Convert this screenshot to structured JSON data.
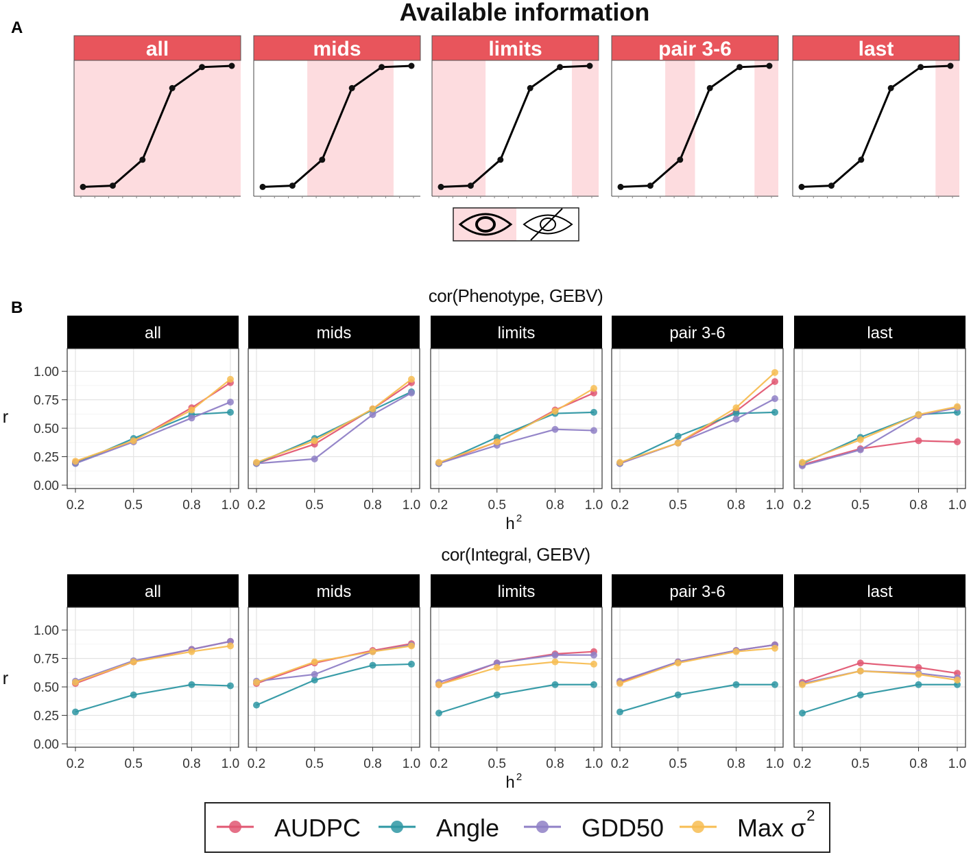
{
  "panel_a": {
    "label": "A",
    "title": "Available information",
    "facets": [
      "all",
      "mids",
      "limits",
      "pair 3-6",
      "last"
    ],
    "curve": {
      "x": [
        1,
        2,
        3,
        4,
        5,
        6
      ],
      "y": [
        0.02,
        0.03,
        0.24,
        0.82,
        0.99,
        1.0
      ]
    },
    "visible_ranges": [
      [
        [
          0.7,
          6.3
        ]
      ],
      [
        [
          2.5,
          5.4
        ]
      ],
      [
        [
          0.7,
          2.5
        ],
        [
          5.4,
          6.3
        ]
      ],
      [
        [
          2.5,
          3.5
        ],
        [
          5.5,
          6.3
        ]
      ],
      [
        [
          5.5,
          6.3
        ]
      ]
    ],
    "legend_icons": [
      "eye-icon",
      "eye-slash-icon"
    ],
    "colors": {
      "strip": "#e8555c",
      "shade": "#fddcdf"
    }
  },
  "panel_b": {
    "label": "B",
    "h2_label": "h",
    "h2_sup": "2",
    "legend": [
      {
        "name": "AUDPC",
        "color": "#e15772"
      },
      {
        "name": "Angle",
        "color": "#2e97a3"
      },
      {
        "name": "GDD50",
        "color": "#8f80c6"
      },
      {
        "name": "Max σ",
        "sup": "2",
        "color": "#f7bd52"
      }
    ]
  },
  "chart_data": [
    {
      "type": "line",
      "title": "cor(Phenotype, GEBV)",
      "xlabel": "h2",
      "ylabel": "r",
      "x": [
        0.2,
        0.5,
        0.8,
        1.0
      ],
      "xticks": [
        "0.2",
        "0.5",
        "0.8",
        "1.0"
      ],
      "ylim": [
        -0.03,
        1.2
      ],
      "yticks": [
        "0.00",
        "0.25",
        "0.50",
        "0.75",
        "1.00"
      ],
      "facets": [
        {
          "name": "all",
          "series": [
            {
              "name": "AUDPC",
              "values": [
                0.2,
                0.39,
                0.68,
                0.9
              ]
            },
            {
              "name": "Angle",
              "values": [
                0.19,
                0.41,
                0.62,
                0.64
              ]
            },
            {
              "name": "GDD50",
              "values": [
                0.19,
                0.38,
                0.59,
                0.73
              ]
            },
            {
              "name": "Max σ2",
              "values": [
                0.21,
                0.39,
                0.66,
                0.93
              ]
            }
          ]
        },
        {
          "name": "mids",
          "series": [
            {
              "name": "AUDPC",
              "values": [
                0.19,
                0.36,
                0.67,
                0.9
              ]
            },
            {
              "name": "Angle",
              "values": [
                0.19,
                0.41,
                0.66,
                0.82
              ]
            },
            {
              "name": "GDD50",
              "values": [
                0.19,
                0.23,
                0.62,
                0.81
              ]
            },
            {
              "name": "Max σ2",
              "values": [
                0.2,
                0.39,
                0.67,
                0.93
              ]
            }
          ]
        },
        {
          "name": "limits",
          "series": [
            {
              "name": "AUDPC",
              "values": [
                0.19,
                0.38,
                0.66,
                0.81
              ]
            },
            {
              "name": "Angle",
              "values": [
                0.19,
                0.42,
                0.63,
                0.64
              ]
            },
            {
              "name": "GDD50",
              "values": [
                0.19,
                0.35,
                0.49,
                0.48
              ]
            },
            {
              "name": "Max σ2",
              "values": [
                0.2,
                0.38,
                0.65,
                0.85
              ]
            }
          ]
        },
        {
          "name": "pair 3-6",
          "series": [
            {
              "name": "AUDPC",
              "values": [
                0.19,
                0.37,
                0.65,
                0.91
              ]
            },
            {
              "name": "Angle",
              "values": [
                0.19,
                0.43,
                0.63,
                0.64
              ]
            },
            {
              "name": "GDD50",
              "values": [
                0.19,
                0.37,
                0.58,
                0.76
              ]
            },
            {
              "name": "Max σ2",
              "values": [
                0.2,
                0.37,
                0.68,
                0.99
              ]
            }
          ]
        },
        {
          "name": "last",
          "series": [
            {
              "name": "AUDPC",
              "values": [
                0.18,
                0.32,
                0.39,
                0.38
              ]
            },
            {
              "name": "Angle",
              "values": [
                0.19,
                0.42,
                0.62,
                0.64
              ]
            },
            {
              "name": "GDD50",
              "values": [
                0.17,
                0.31,
                0.61,
                0.68
              ]
            },
            {
              "name": "Max σ2",
              "values": [
                0.2,
                0.4,
                0.62,
                0.69
              ]
            }
          ]
        }
      ]
    },
    {
      "type": "line",
      "title": "cor(Integral, GEBV)",
      "xlabel": "h2",
      "ylabel": "r",
      "x": [
        0.2,
        0.5,
        0.8,
        1.0
      ],
      "xticks": [
        "0.2",
        "0.5",
        "0.8",
        "1.0"
      ],
      "ylim": [
        -0.03,
        1.2
      ],
      "yticks": [
        "0.00",
        "0.25",
        "0.50",
        "0.75",
        "1.00"
      ],
      "facets": [
        {
          "name": "all",
          "series": [
            {
              "name": "AUDPC",
              "values": [
                0.53,
                0.72,
                0.83,
                0.9
              ]
            },
            {
              "name": "Angle",
              "values": [
                0.28,
                0.43,
                0.52,
                0.51
              ]
            },
            {
              "name": "GDD50",
              "values": [
                0.55,
                0.73,
                0.83,
                0.9
              ]
            },
            {
              "name": "Max σ2",
              "values": [
                0.54,
                0.72,
                0.81,
                0.86
              ]
            }
          ]
        },
        {
          "name": "mids",
          "series": [
            {
              "name": "AUDPC",
              "values": [
                0.53,
                0.71,
                0.82,
                0.88
              ]
            },
            {
              "name": "Angle",
              "values": [
                0.34,
                0.56,
                0.69,
                0.7
              ]
            },
            {
              "name": "GDD50",
              "values": [
                0.55,
                0.61,
                0.81,
                0.87
              ]
            },
            {
              "name": "Max σ2",
              "values": [
                0.54,
                0.72,
                0.81,
                0.86
              ]
            }
          ]
        },
        {
          "name": "limits",
          "series": [
            {
              "name": "AUDPC",
              "values": [
                0.52,
                0.71,
                0.79,
                0.81
              ]
            },
            {
              "name": "Angle",
              "values": [
                0.27,
                0.43,
                0.52,
                0.52
              ]
            },
            {
              "name": "GDD50",
              "values": [
                0.54,
                0.71,
                0.78,
                0.78
              ]
            },
            {
              "name": "Max σ2",
              "values": [
                0.52,
                0.67,
                0.72,
                0.7
              ]
            }
          ]
        },
        {
          "name": "pair 3-6",
          "series": [
            {
              "name": "AUDPC",
              "values": [
                0.54,
                0.72,
                0.82,
                0.87
              ]
            },
            {
              "name": "Angle",
              "values": [
                0.28,
                0.43,
                0.52,
                0.52
              ]
            },
            {
              "name": "GDD50",
              "values": [
                0.55,
                0.72,
                0.82,
                0.87
              ]
            },
            {
              "name": "Max σ2",
              "values": [
                0.53,
                0.71,
                0.81,
                0.84
              ]
            }
          ]
        },
        {
          "name": "last",
          "series": [
            {
              "name": "AUDPC",
              "values": [
                0.54,
                0.71,
                0.67,
                0.62
              ]
            },
            {
              "name": "Angle",
              "values": [
                0.27,
                0.43,
                0.52,
                0.52
              ]
            },
            {
              "name": "GDD50",
              "values": [
                0.53,
                0.64,
                0.62,
                0.58
              ]
            },
            {
              "name": "Max σ2",
              "values": [
                0.52,
                0.64,
                0.61,
                0.56
              ]
            }
          ]
        }
      ]
    }
  ]
}
